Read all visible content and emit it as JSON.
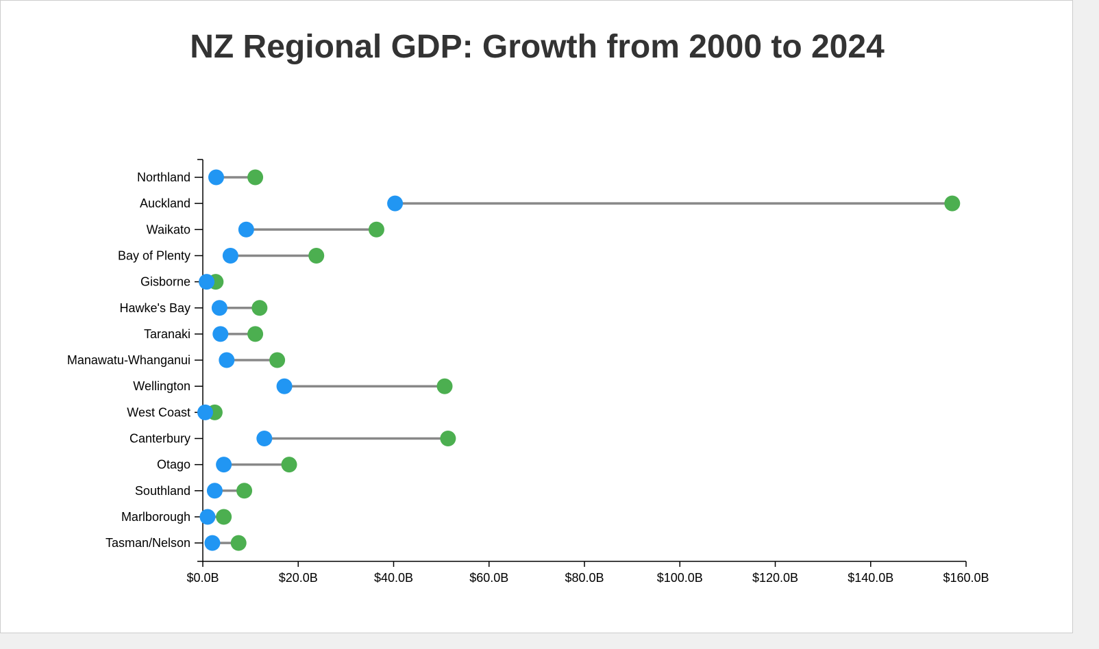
{
  "chart_data": {
    "type": "dumbbell",
    "title": "NZ Regional GDP: Growth from 2000 to 2024",
    "xlabel": "",
    "ylabel": "",
    "xlim": [
      0,
      160
    ],
    "x_ticks": [
      "$0.0B",
      "$20.0B",
      "$40.0B",
      "$60.0B",
      "$80.0B",
      "$100.0B",
      "$120.0B",
      "$140.0B",
      "$160.0B"
    ],
    "x_tick_values": [
      0,
      20,
      40,
      60,
      80,
      100,
      120,
      140,
      160
    ],
    "unit": "billion NZD",
    "grid": false,
    "categories": [
      "Northland",
      "Auckland",
      "Waikato",
      "Bay of Plenty",
      "Gisborne",
      "Hawke's Bay",
      "Taranaki",
      "Manawatu-Whanganui",
      "Wellington",
      "West Coast",
      "Canterbury",
      "Otago",
      "Southland",
      "Marlborough",
      "Tasman/Nelson"
    ],
    "series": [
      {
        "color": "#2196f3",
        "values": [
          2.8,
          40.3,
          9.1,
          5.8,
          0.8,
          3.5,
          3.7,
          5.0,
          17.1,
          0.5,
          12.9,
          4.4,
          2.5,
          1.0,
          2.0
        ]
      },
      {
        "color": "#4caf50",
        "values": [
          11.0,
          157.1,
          36.4,
          23.8,
          2.7,
          11.9,
          11.0,
          15.6,
          50.7,
          2.5,
          51.4,
          18.1,
          8.7,
          4.4,
          7.5
        ]
      }
    ],
    "connector_color": "#888888"
  }
}
